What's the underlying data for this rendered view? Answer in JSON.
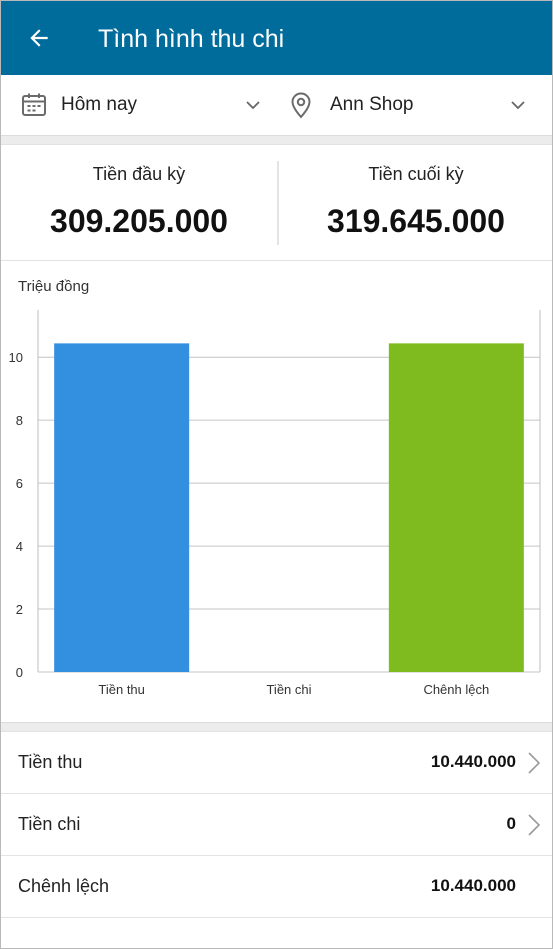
{
  "header": {
    "title": "Tình hình thu chi",
    "back_icon": "arrow-left-icon"
  },
  "filters": {
    "period": {
      "label": "Hôm nay",
      "icon": "calendar-icon"
    },
    "shop": {
      "label": "Ann Shop",
      "icon": "location-pin-icon"
    }
  },
  "balances": {
    "opening_label": "Tiền đầu kỳ",
    "opening_value": "309.205.000",
    "closing_label": "Tiền cuối kỳ",
    "closing_value": "319.645.000"
  },
  "chart_data": {
    "type": "bar",
    "unit_label": "Triệu đồng",
    "categories": [
      "Tiền thu",
      "Tiền chi",
      "Chênh lệch"
    ],
    "values": [
      10.44,
      0,
      10.44
    ],
    "colors": [
      "#3390e0",
      "#3390e0",
      "#7fba1e"
    ],
    "ylim": [
      0,
      11.5
    ],
    "yticks": [
      0,
      2,
      4,
      6,
      8,
      10
    ],
    "grid": true
  },
  "summary": [
    {
      "label": "Tiền thu",
      "value": "10.440.000",
      "has_chevron": true
    },
    {
      "label": "Tiền chi",
      "value": "0",
      "has_chevron": true
    },
    {
      "label": "Chênh lệch",
      "value": "10.440.000",
      "has_chevron": false
    }
  ],
  "colors": {
    "appbar": "#006c9c",
    "income_bar": "#3390e0",
    "difference_bar": "#7fba1e"
  }
}
